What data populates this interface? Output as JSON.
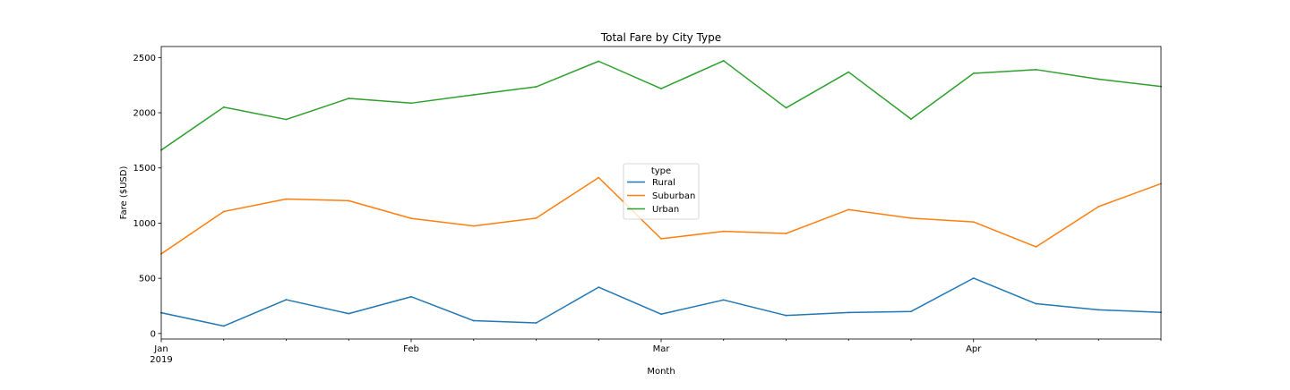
{
  "chart_data": {
    "type": "line",
    "title": "Total Fare by City Type",
    "xlabel": "Month",
    "ylabel": "Fare ($USD)",
    "x": [
      "2019-01-06",
      "2019-01-13",
      "2019-01-20",
      "2019-01-27",
      "2019-02-03",
      "2019-02-10",
      "2019-02-17",
      "2019-02-24",
      "2019-03-03",
      "2019-03-10",
      "2019-03-17",
      "2019-03-24",
      "2019-03-31",
      "2019-04-07",
      "2019-04-14",
      "2019-04-21",
      "2019-04-28"
    ],
    "xlim": [
      "2019-01-06",
      "2019-04-28"
    ],
    "ylim": [
      -50,
      2600
    ],
    "yticks": [
      0,
      500,
      1000,
      1500,
      2000,
      2500
    ],
    "xticks": [
      {
        "date": "2019-01-06",
        "label": "Jan",
        "sublabel": "2019",
        "major": true
      },
      {
        "date": "2019-01-13",
        "label": "",
        "major": false
      },
      {
        "date": "2019-01-20",
        "label": "",
        "major": false
      },
      {
        "date": "2019-01-27",
        "label": "",
        "major": false
      },
      {
        "date": "2019-02-03",
        "label": "Feb",
        "major": true
      },
      {
        "date": "2019-02-10",
        "label": "",
        "major": false
      },
      {
        "date": "2019-02-17",
        "label": "",
        "major": false
      },
      {
        "date": "2019-02-24",
        "label": "",
        "major": false
      },
      {
        "date": "2019-03-03",
        "label": "Mar",
        "major": true
      },
      {
        "date": "2019-03-10",
        "label": "",
        "major": false
      },
      {
        "date": "2019-03-17",
        "label": "",
        "major": false
      },
      {
        "date": "2019-03-24",
        "label": "",
        "major": false
      },
      {
        "date": "2019-03-31",
        "label": "",
        "major": false
      },
      {
        "date": "2019-04-07",
        "label": "Apr",
        "major": true
      },
      {
        "date": "2019-04-14",
        "label": "",
        "major": false
      },
      {
        "date": "2019-04-21",
        "label": "",
        "major": false
      },
      {
        "date": "2019-04-28",
        "label": "",
        "major": false
      }
    ],
    "grid": false,
    "legend": {
      "title": "type",
      "placement": "center"
    },
    "series": [
      {
        "name": "Rural",
        "color": "#1f77b4",
        "values": [
          187.92,
          67.65,
          306.0,
          179.69,
          333.08,
          115.8,
          95.82,
          419.06,
          175.14,
          303.94,
          163.39,
          189.76,
          199.42,
          501.24,
          269.79,
          214.14,
          191.85
        ]
      },
      {
        "name": "Suburban",
        "color": "#ff7f0e",
        "values": [
          721.6,
          1105.13,
          1218.2,
          1203.28,
          1042.79,
          974.34,
          1045.5,
          1412.74,
          858.46,
          925.27,
          906.2,
          1122.2,
          1045.06,
          1010.73,
          784.82,
          1149.27,
          1357.75
        ]
      },
      {
        "name": "Urban",
        "color": "#2ca02c",
        "values": [
          1661.68,
          2050.43,
          1939.02,
          2129.51,
          2086.94,
          2162.64,
          2235.07,
          2466.29,
          2218.2,
          2470.93,
          2044.42,
          2368.37,
          1942.77,
          2356.7,
          2390.72,
          2303.8,
          2238.29
        ]
      }
    ]
  }
}
